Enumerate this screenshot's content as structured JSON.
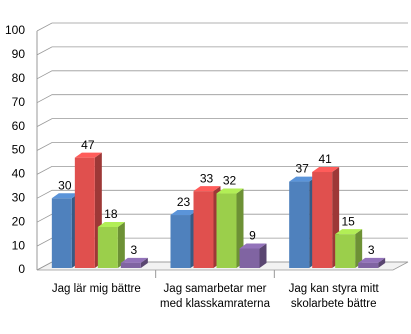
{
  "chart_data": {
    "type": "bar3d",
    "categories": [
      "Jag lär mig bättre",
      "Jag samarbetar mer med klasskamraterna",
      "Jag kan styra mitt skolarbete bättre"
    ],
    "series": [
      {
        "color": "#4f81bd",
        "values": [
          30,
          23,
          37
        ]
      },
      {
        "color": "#e0504e",
        "values": [
          47,
          33,
          41
        ]
      },
      {
        "color": "#9bcf4b",
        "values": [
          18,
          32,
          15
        ]
      },
      {
        "color": "#8064a2",
        "values": [
          3,
          9,
          3
        ]
      }
    ],
    "ylim": [
      0,
      100
    ],
    "yticks": [
      0,
      10,
      20,
      30,
      40,
      50,
      60,
      70,
      80,
      90,
      100
    ],
    "grid": true
  }
}
